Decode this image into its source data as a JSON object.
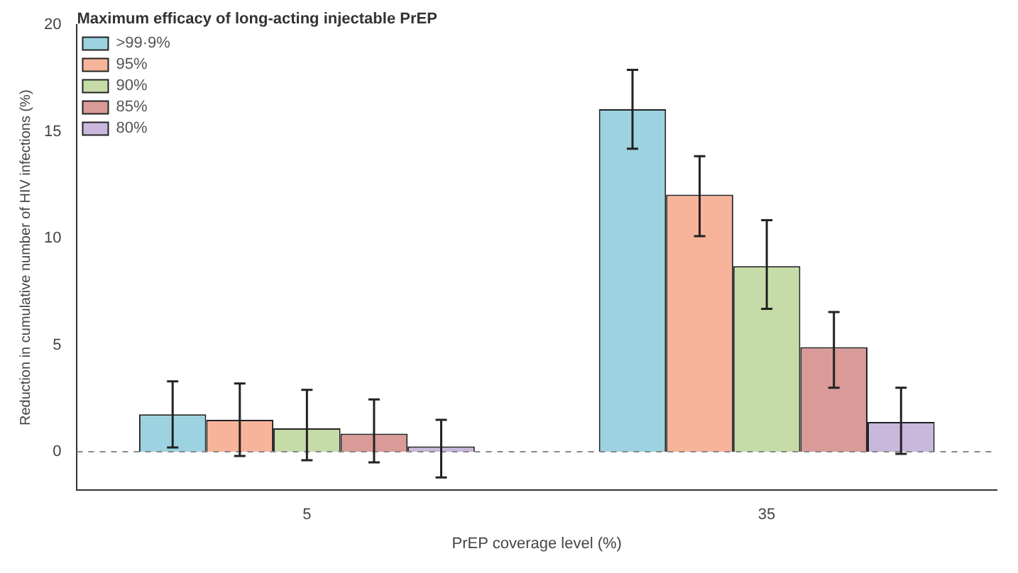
{
  "chart_data": {
    "type": "bar",
    "xlabel": "PrEP coverage level (%)",
    "ylabel": "Reduction in cumulative number of HIV infections (%)",
    "legend_title": "Maximum efficacy of long-acting injectable PrEP",
    "categories": [
      "5",
      "35"
    ],
    "series": [
      {
        "name": ">99·9%",
        "color": "#9dd3e0",
        "values": [
          1.75,
          16.05
        ],
        "errors": [
          [
            0.2,
            3.3
          ],
          [
            14.2,
            17.9
          ]
        ]
      },
      {
        "name": "95%",
        "color": "#f7b49a",
        "values": [
          1.5,
          12.05
        ],
        "errors": [
          [
            -0.2,
            3.2
          ],
          [
            10.1,
            13.85
          ]
        ]
      },
      {
        "name": "90%",
        "color": "#c6dca8",
        "values": [
          1.1,
          8.7
        ],
        "errors": [
          [
            -0.4,
            2.9
          ],
          [
            6.7,
            10.85
          ]
        ]
      },
      {
        "name": "85%",
        "color": "#d99a98",
        "values": [
          0.85,
          4.9
        ],
        "errors": [
          [
            -0.5,
            2.45
          ],
          [
            3.0,
            6.55
          ]
        ]
      },
      {
        "name": "80%",
        "color": "#c9b7dc",
        "values": [
          0.25,
          1.4
        ],
        "errors": [
          [
            -1.2,
            1.5
          ],
          [
            -0.1,
            3.0
          ]
        ]
      }
    ],
    "ylim": [
      -1.8,
      20
    ],
    "yticks": [
      0,
      5,
      10,
      15,
      20
    ],
    "grid": false,
    "legend": "top left",
    "ref_lines": [
      {
        "axis": "y",
        "value": 0,
        "line_style": "dashed",
        "color": "#888888"
      }
    ]
  }
}
